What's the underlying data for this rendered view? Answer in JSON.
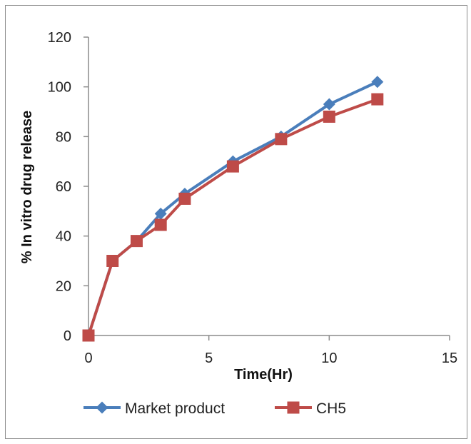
{
  "chart_data": {
    "type": "line",
    "xlabel": "Time(Hr)",
    "ylabel": "% In vitro drug release",
    "xlim": [
      0,
      15
    ],
    "ylim": [
      0,
      120
    ],
    "xticks": [
      0,
      5,
      10,
      15
    ],
    "yticks": [
      0,
      20,
      40,
      60,
      80,
      100,
      120
    ],
    "grid": false,
    "legend": "bottom",
    "series": [
      {
        "name": "Market product",
        "color": "#4a7ebb",
        "marker": "diamond",
        "x": [
          0,
          1,
          2,
          3,
          4,
          6,
          8,
          10,
          12
        ],
        "y": [
          0,
          30,
          38,
          49,
          57,
          70,
          80,
          93,
          102
        ]
      },
      {
        "name": "CH5",
        "color": "#be4b48",
        "marker": "square",
        "x": [
          0,
          1,
          2,
          3,
          4,
          6,
          8,
          10,
          12
        ],
        "y": [
          0,
          30,
          38,
          44.5,
          55,
          68,
          79,
          88,
          95
        ]
      }
    ]
  }
}
